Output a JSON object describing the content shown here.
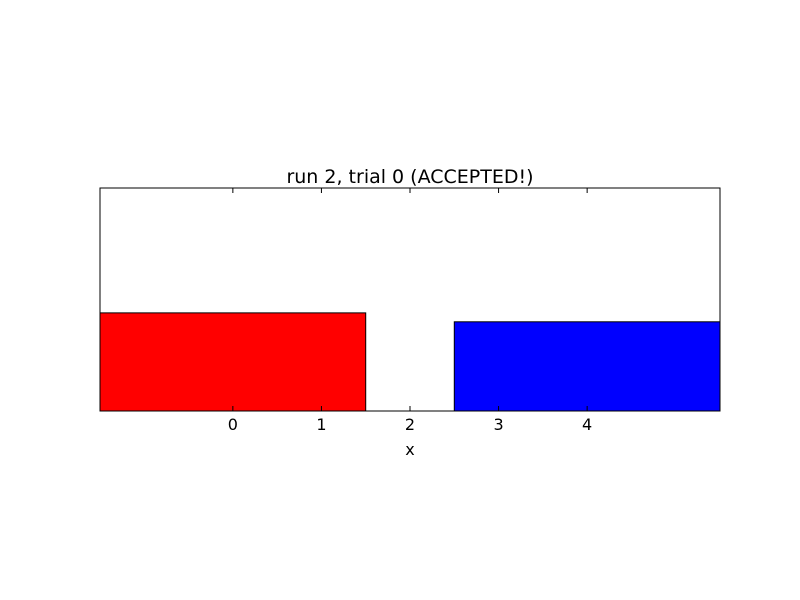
{
  "chart_data": {
    "type": "bar",
    "title": "run 2, trial 0 (ACCEPTED!)",
    "xlabel": "x",
    "ylabel": "",
    "xlim": [
      -1.5,
      5.5
    ],
    "ylim": [
      0,
      1
    ],
    "x_ticks": [
      0,
      1,
      2,
      3,
      4
    ],
    "y_ticks_visible": false,
    "grid": false,
    "bars": [
      {
        "x_start": -1.5,
        "x_end": 1.5,
        "value": 0.44,
        "color": "#ff0000"
      },
      {
        "x_start": 2.5,
        "x_end": 5.5,
        "value": 0.4,
        "color": "#0000ff"
      }
    ]
  }
}
